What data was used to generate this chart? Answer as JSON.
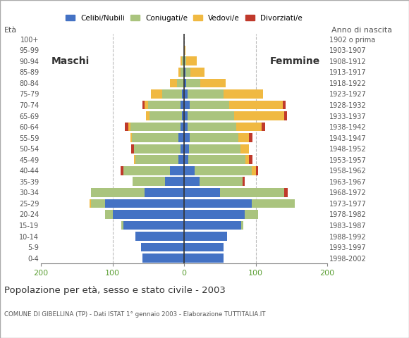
{
  "age_groups": [
    "0-4",
    "5-9",
    "10-14",
    "15-19",
    "20-24",
    "25-29",
    "30-34",
    "35-39",
    "40-44",
    "45-49",
    "50-54",
    "55-59",
    "60-64",
    "65-69",
    "70-74",
    "75-79",
    "80-84",
    "85-89",
    "90-94",
    "95-99",
    "100+"
  ],
  "birth_years": [
    "1998-2002",
    "1993-1997",
    "1988-1992",
    "1983-1987",
    "1978-1982",
    "1973-1977",
    "1968-1972",
    "1963-1967",
    "1958-1962",
    "1953-1957",
    "1948-1952",
    "1943-1947",
    "1938-1942",
    "1933-1937",
    "1928-1932",
    "1923-1927",
    "1918-1922",
    "1913-1917",
    "1908-1912",
    "1903-1907",
    "1902 o prima"
  ],
  "males": {
    "celibi": [
      58,
      60,
      68,
      85,
      100,
      110,
      55,
      27,
      20,
      8,
      5,
      8,
      5,
      3,
      5,
      3,
      0,
      0,
      0,
      0,
      0
    ],
    "coniugati": [
      0,
      0,
      0,
      3,
      10,
      20,
      75,
      45,
      65,
      60,
      65,
      65,
      70,
      45,
      45,
      28,
      10,
      5,
      3,
      0,
      0
    ],
    "vedovi": [
      0,
      0,
      0,
      0,
      0,
      2,
      0,
      0,
      0,
      2,
      0,
      2,
      3,
      5,
      5,
      15,
      10,
      3,
      2,
      0,
      0
    ],
    "divorziati": [
      0,
      0,
      0,
      0,
      0,
      0,
      0,
      0,
      4,
      0,
      4,
      0,
      5,
      0,
      3,
      0,
      0,
      0,
      0,
      0,
      0
    ]
  },
  "females": {
    "nubili": [
      55,
      55,
      60,
      80,
      85,
      95,
      50,
      22,
      15,
      6,
      7,
      8,
      5,
      5,
      8,
      5,
      3,
      2,
      0,
      0,
      0
    ],
    "coniugate": [
      0,
      0,
      0,
      3,
      18,
      60,
      90,
      60,
      80,
      80,
      72,
      68,
      68,
      65,
      55,
      50,
      20,
      7,
      3,
      0,
      0
    ],
    "vedove": [
      0,
      0,
      0,
      0,
      0,
      0,
      0,
      0,
      5,
      5,
      12,
      15,
      35,
      70,
      75,
      55,
      35,
      20,
      15,
      2,
      0
    ],
    "divorziate": [
      0,
      0,
      0,
      0,
      0,
      0,
      5,
      3,
      3,
      5,
      0,
      5,
      5,
      4,
      4,
      0,
      0,
      0,
      0,
      0,
      0
    ]
  },
  "color_celibi": "#4472c4",
  "color_coniugati": "#aac47e",
  "color_vedovi": "#f0b942",
  "color_divorziati": "#c0392b",
  "title": "Popolazione per età, sesso e stato civile - 2003",
  "subtitle": "COMUNE DI GIBELLINA (TP) - Dati ISTAT 1° gennaio 2003 - Elaborazione TUTTITALIA.IT",
  "label_eta": "Età",
  "label_anno": "Anno di nascita",
  "label_maschi": "Maschi",
  "label_femmine": "Femmine",
  "legend_labels": [
    "Celibi/Nubili",
    "Coniugati/e",
    "Vedovi/e",
    "Divorziati/e"
  ],
  "xlim": 200,
  "background_color": "#ffffff"
}
